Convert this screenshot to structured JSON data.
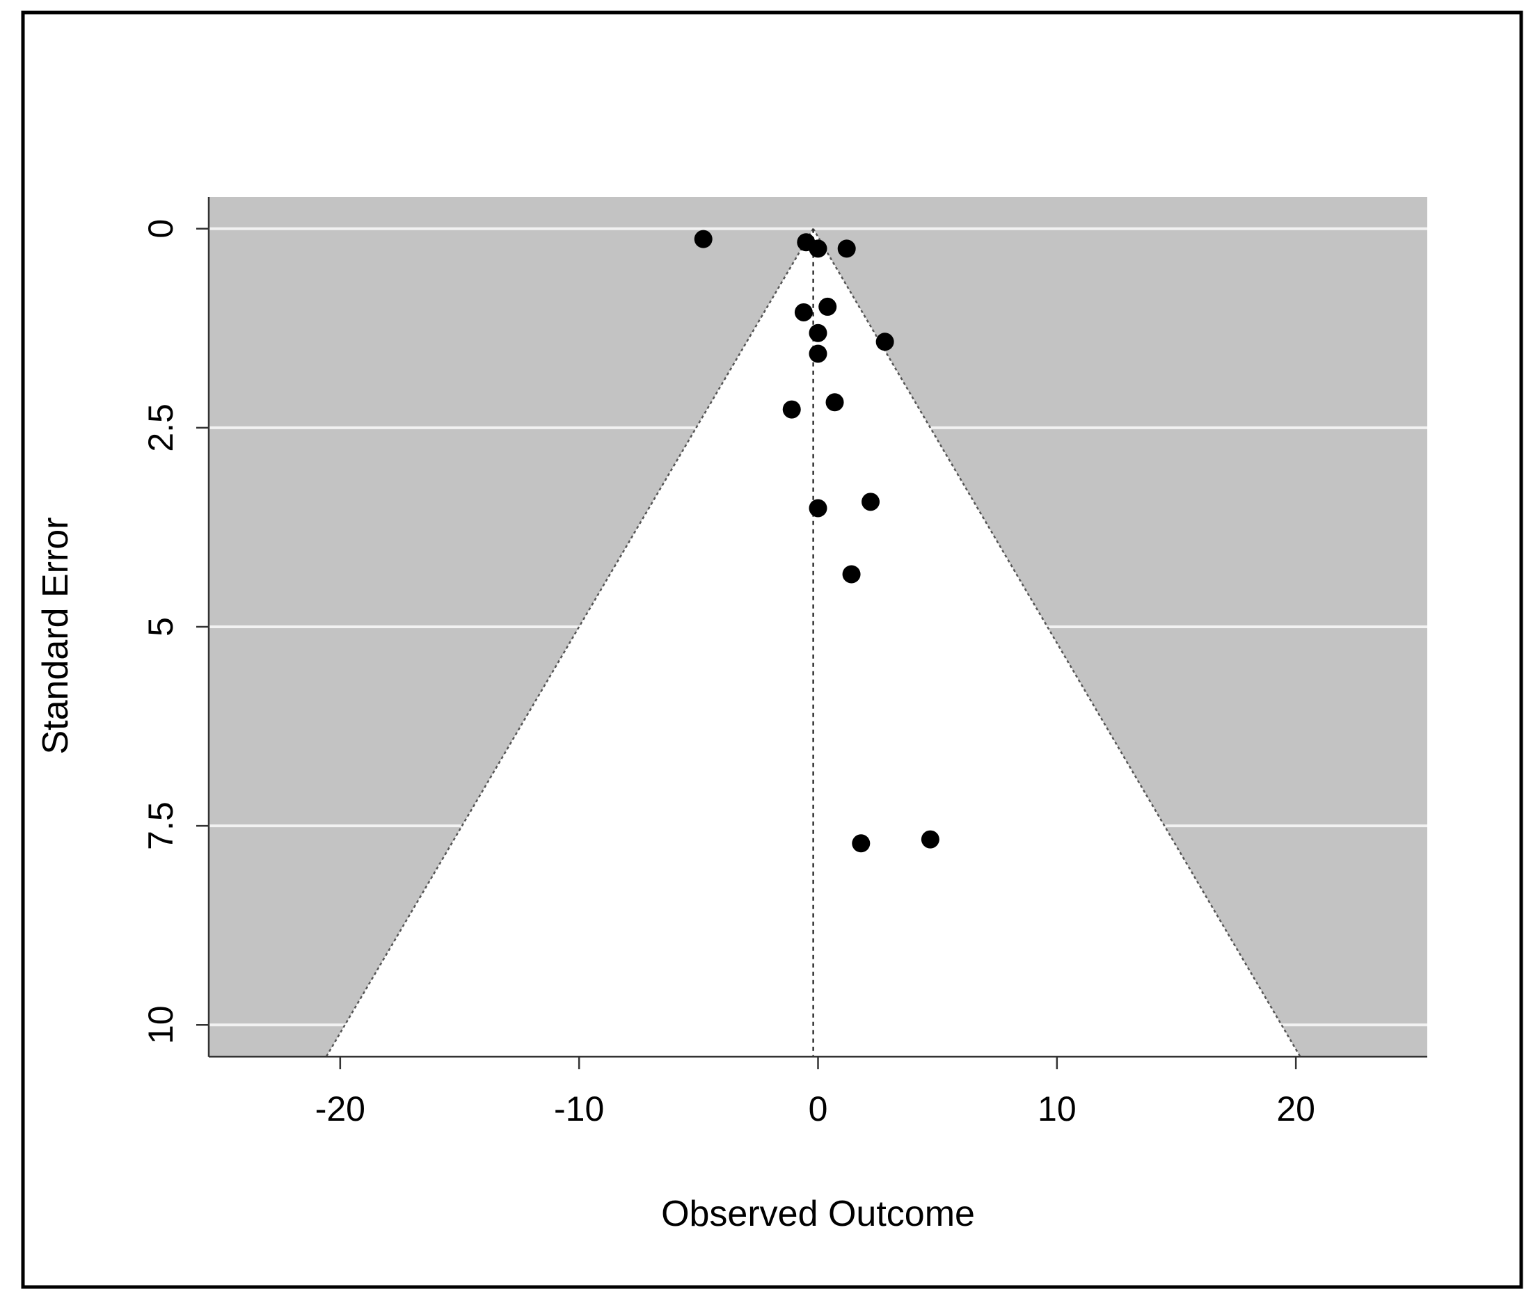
{
  "colors": {
    "background": "#ffffff",
    "frame": "#000000",
    "panel": "#c3c3c3",
    "gridline": "#f2f2f2",
    "funnel": "#ffffff",
    "funnel_edge": "#555555",
    "points": "#000000"
  },
  "chart_data": {
    "type": "scatter",
    "title": "",
    "xlabel": "Observed Outcome",
    "ylabel": "Standard Error",
    "xlim": [
      -25.5,
      25.5
    ],
    "ylim": [
      10.4,
      -0.4
    ],
    "y_inverted": true,
    "xticks": [
      -20,
      -10,
      0,
      10,
      20
    ],
    "xtick_labels": [
      "-20",
      "-10",
      "0",
      "10",
      "20"
    ],
    "yticks": [
      0,
      2.5,
      5,
      7.5,
      10
    ],
    "ytick_labels": [
      "0",
      "2.5",
      "5",
      "7.5",
      "10"
    ],
    "grid": "horizontal",
    "legend": "none",
    "funnel": {
      "center": -0.2,
      "se_max": 10.4,
      "z": 1.96
    },
    "x": [
      -4.8,
      -0.5,
      0.0,
      1.2,
      -0.6,
      0.4,
      0.0,
      2.8,
      0.0,
      0.7,
      -1.1,
      2.2,
      0.0,
      1.4,
      4.7,
      1.8
    ],
    "y": [
      0.13,
      0.17,
      0.25,
      0.25,
      1.05,
      0.98,
      1.31,
      1.42,
      1.57,
      2.18,
      2.27,
      3.43,
      3.51,
      4.34,
      7.67,
      7.72
    ]
  }
}
